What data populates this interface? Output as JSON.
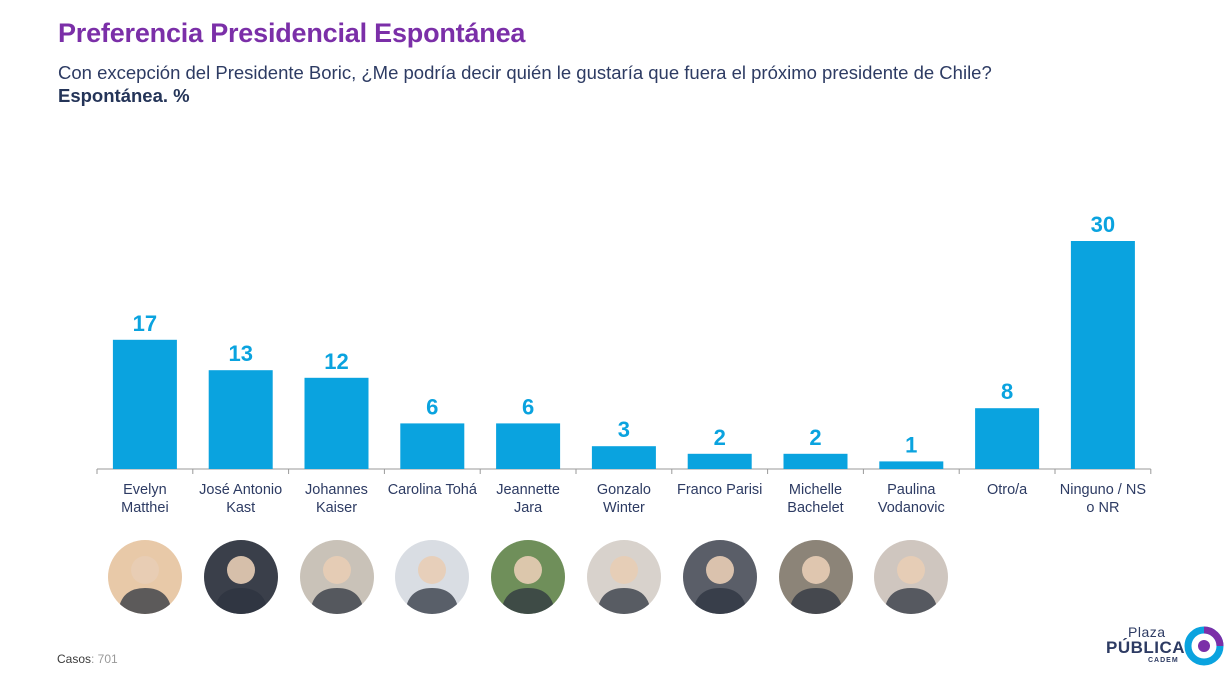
{
  "header": {
    "title": "Preferencia Presidencial Espontánea",
    "subtitle": "Con excepción del Presidente Boric, ¿Me podría decir quién le gustaría que fuera el próximo presidente de Chile?",
    "subtitle2": "Espontánea. %"
  },
  "colors": {
    "title": "#7b2fa8",
    "bar": "#0aa3df",
    "label_value": "#0aa3df",
    "axis": "#9a9a9a",
    "text": "#2d3b63"
  },
  "chart_data": {
    "type": "bar",
    "categories": [
      [
        "Evelyn",
        "Matthei"
      ],
      [
        "José Antonio",
        "Kast"
      ],
      [
        "Johannes",
        "Kaiser"
      ],
      [
        "Carolina Tohá"
      ],
      [
        "Jeannette",
        "Jara"
      ],
      [
        "Gonzalo",
        "Winter"
      ],
      [
        "Franco Parisi"
      ],
      [
        "Michelle",
        "Bachelet"
      ],
      [
        "Paulina",
        "Vodanovic"
      ],
      [
        "Otro/a"
      ],
      [
        "Ninguno / NS",
        "o NR"
      ]
    ],
    "values": [
      17,
      13,
      12,
      6,
      6,
      3,
      2,
      2,
      1,
      8,
      30
    ],
    "ylim": [
      0,
      30
    ],
    "grid": false,
    "legend": "none"
  },
  "avatars": [
    {
      "icon": "person-photo-icon",
      "bg": "#e8c9a8"
    },
    {
      "icon": "person-photo-icon",
      "bg": "#3a3f4a"
    },
    {
      "icon": "person-photo-icon",
      "bg": "#c9c2b8"
    },
    {
      "icon": "person-photo-icon",
      "bg": "#d9dde3"
    },
    {
      "icon": "person-photo-icon",
      "bg": "#6f8f5a"
    },
    {
      "icon": "person-photo-icon",
      "bg": "#d8d2cc"
    },
    {
      "icon": "person-photo-icon",
      "bg": "#5a5e68"
    },
    {
      "icon": "person-photo-icon",
      "bg": "#8c8478"
    },
    {
      "icon": "person-photo-icon",
      "bg": "#cfc6bf"
    }
  ],
  "footer": {
    "casos_label": "Casos",
    "casos_value": ": 701"
  },
  "logo": {
    "plaza": "Plaza",
    "publica": "PÚBLICA",
    "cadem": "CADEM"
  }
}
